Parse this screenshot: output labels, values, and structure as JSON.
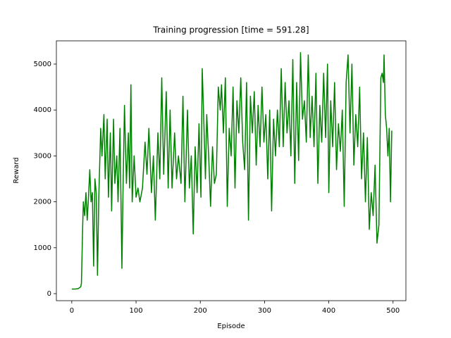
{
  "chart_data": {
    "type": "line",
    "title": "Training progression [time = 591.28]",
    "x_label": "Episode",
    "y_label": "Reward",
    "color": "#008000",
    "x": [
      0,
      5,
      10,
      14,
      15,
      17,
      18,
      20,
      22,
      24,
      26,
      28,
      30,
      32,
      34,
      36,
      38,
      40,
      42,
      45,
      47,
      50,
      52,
      55,
      57,
      60,
      62,
      65,
      67,
      70,
      72,
      75,
      78,
      80,
      82,
      85,
      88,
      90,
      92,
      94,
      97,
      100,
      103,
      106,
      110,
      114,
      117,
      120,
      124,
      127,
      130,
      134,
      137,
      140,
      143,
      147,
      150,
      153,
      156,
      160,
      163,
      166,
      170,
      173,
      176,
      180,
      183,
      186,
      189,
      192,
      195,
      198,
      201,
      203,
      205,
      208,
      210,
      213,
      216,
      219,
      222,
      225,
      228,
      231,
      233,
      236,
      239,
      242,
      245,
      248,
      251,
      254,
      257,
      260,
      263,
      266,
      269,
      272,
      275,
      278,
      281,
      284,
      287,
      290,
      293,
      296,
      299,
      302,
      305,
      308,
      311,
      314,
      317,
      320,
      323,
      326,
      329,
      332,
      335,
      338,
      341,
      344,
      347,
      350,
      353,
      356,
      359,
      362,
      365,
      368,
      371,
      374,
      377,
      380,
      383,
      386,
      389,
      392,
      395,
      398,
      400,
      403,
      406,
      409,
      412,
      415,
      418,
      421,
      424,
      427,
      430,
      433,
      436,
      439,
      442,
      445,
      448,
      451,
      454,
      457,
      460,
      463,
      466,
      469,
      472,
      475,
      478,
      481,
      483,
      485,
      486,
      488,
      490,
      492,
      494,
      496,
      498
    ],
    "values": [
      100,
      100,
      110,
      150,
      230,
      1500,
      2000,
      1700,
      2200,
      1600,
      2100,
      2700,
      2000,
      2200,
      600,
      2500,
      2200,
      400,
      2100,
      3600,
      3000,
      3900,
      2500,
      3800,
      2100,
      3500,
      1800,
      3800,
      2400,
      3000,
      2000,
      3600,
      550,
      2500,
      4100,
      2400,
      3500,
      2300,
      4550,
      2000,
      3000,
      2100,
      2300,
      2000,
      2300,
      3300,
      2600,
      3600,
      2200,
      3000,
      1600,
      3500,
      2500,
      4700,
      2600,
      4400,
      2300,
      4000,
      2300,
      3500,
      2500,
      3000,
      2400,
      4300,
      2000,
      4000,
      2300,
      3000,
      1300,
      3200,
      2200,
      3700,
      2100,
      4900,
      4000,
      2500,
      3900,
      3000,
      1900,
      3200,
      2400,
      2600,
      4500,
      4000,
      4550,
      3500,
      4700,
      1900,
      3600,
      3000,
      4500,
      2300,
      4200,
      3500,
      4700,
      3300,
      2700,
      4600,
      1600,
      4300,
      3500,
      4400,
      2800,
      4100,
      3200,
      4500,
      3300,
      3900,
      2500,
      4000,
      1800,
      3800,
      3000,
      4000,
      3200,
      4900,
      3200,
      4600,
      3500,
      4200,
      3000,
      5100,
      2400,
      4600,
      2900,
      5250,
      3800,
      4200,
      3300,
      5200,
      3400,
      4300,
      3200,
      4800,
      2400,
      4100,
      3300,
      4800,
      3400,
      5000,
      2200,
      4200,
      3200,
      4600,
      2700,
      3700,
      3100,
      4000,
      1900,
      4600,
      5200,
      3500,
      5000,
      2800,
      3900,
      3200,
      4500,
      2500,
      3500,
      2000,
      3400,
      1400,
      2200,
      1700,
      2800,
      1100,
      1500,
      4700,
      4800,
      4600,
      5200,
      3900,
      3600,
      3000,
      3600,
      2000,
      3550
    ],
    "xlim": [
      -24,
      520
    ],
    "ylim": [
      -153,
      5506
    ],
    "xticks": [
      0,
      100,
      200,
      300,
      400,
      500
    ],
    "yticks": [
      0,
      1000,
      2000,
      3000,
      4000,
      5000
    ]
  }
}
